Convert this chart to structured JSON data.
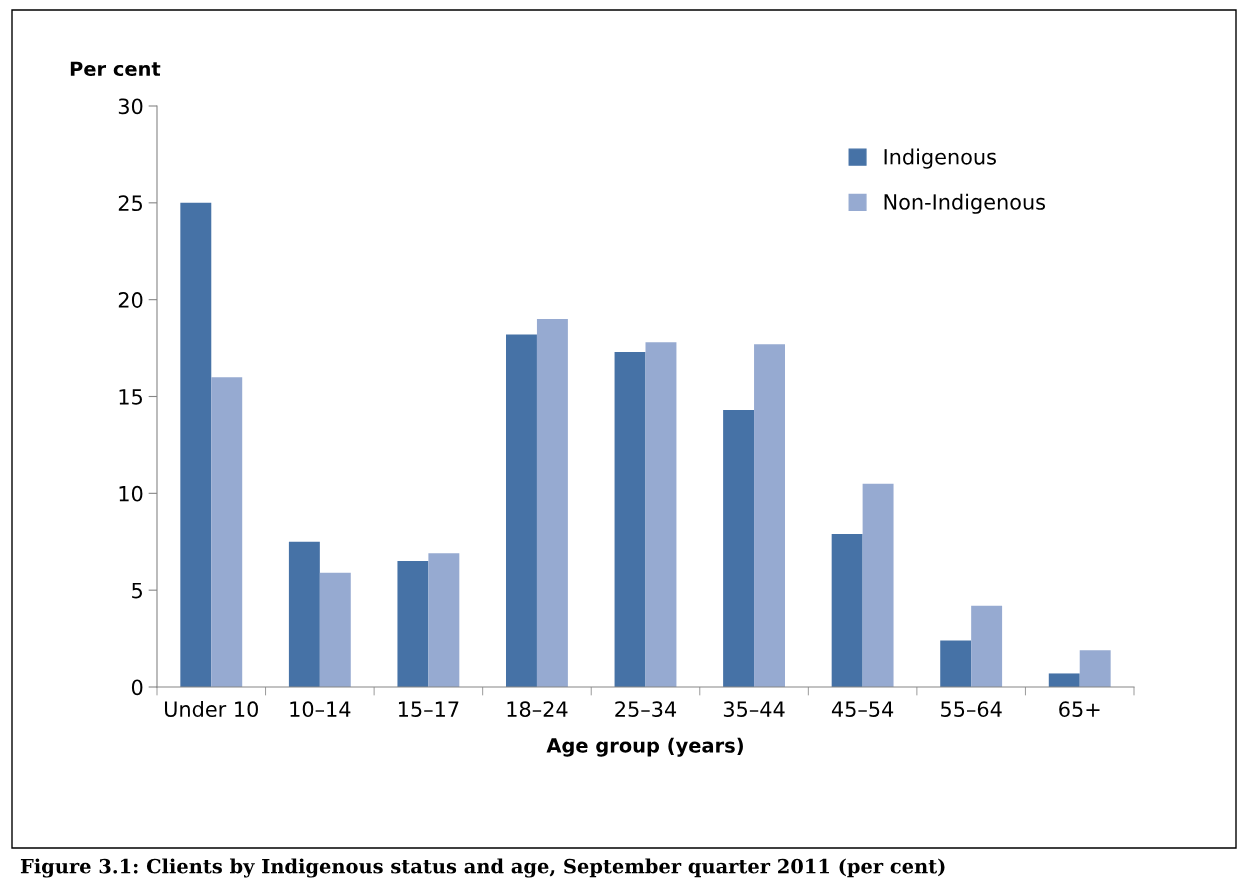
{
  "chart_data": {
    "type": "bar",
    "ylabel": "Per cent",
    "xlabel": "Age group (years)",
    "annotations": [
      "Figure 3.1: Clients by Indigenous status and age, September quarter 2011 (per cent)"
    ],
    "categories": [
      "Under 10",
      "10–14",
      "15–17",
      "18–24",
      "25–34",
      "35–44",
      "45–54",
      "55–64",
      "65+"
    ],
    "series": [
      {
        "name": "Indigenous",
        "color": "#4672a6",
        "values": [
          25.0,
          7.5,
          6.5,
          18.2,
          17.3,
          14.3,
          7.9,
          2.4,
          0.7
        ]
      },
      {
        "name": "Non-Indigenous",
        "color": "#96aad1",
        "values": [
          16.0,
          5.9,
          6.9,
          19.0,
          17.8,
          17.7,
          10.5,
          4.2,
          1.9
        ]
      }
    ],
    "ylim": [
      0,
      30
    ],
    "yticks": [
      0,
      5,
      10,
      15,
      20,
      25,
      30
    ],
    "grid": false,
    "legend": "top right"
  }
}
